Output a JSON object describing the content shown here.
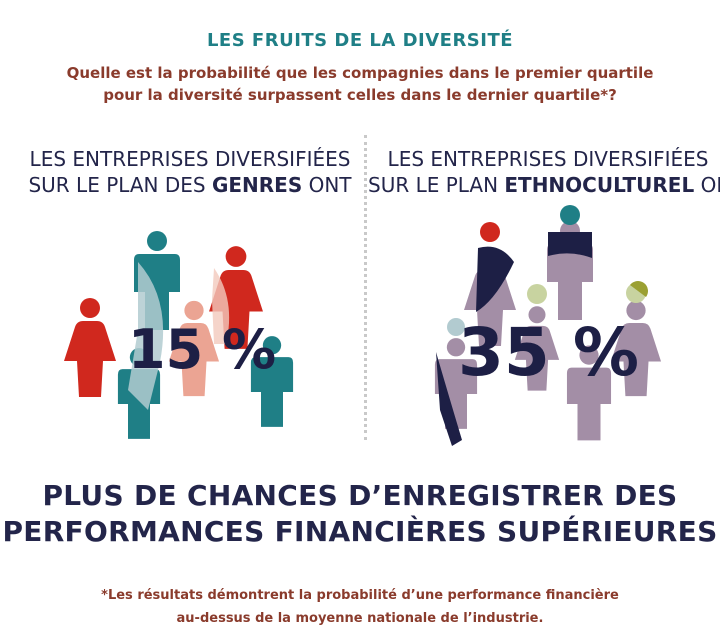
{
  "header": {
    "title": "LES FRUITS DE LA DIVERSITÉ",
    "question_line1": "Quelle est la probabilité que les compagnies dans le premier quartile",
    "question_line2": "pour la diversité surpassent celles dans le dernier quartile*?"
  },
  "left_panel": {
    "line1": "LES ENTREPRISES DIVERSIFIÉES",
    "line2_prefix": "SUR LE PLAN DES ",
    "line2_bold": "GENRES",
    "line2_suffix": " ONT",
    "percentage": "15 %"
  },
  "right_panel": {
    "line1": "LES ENTREPRISES DIVERSIFIÉES",
    "line2_prefix": "SUR LE PLAN ",
    "line2_bold": "ETHNOCULTUREL",
    "line2_suffix": " ONT",
    "percentage": "35 %"
  },
  "statement": {
    "line1": "PLUS DE CHANCES D’ENREGISTRER DES",
    "line2": "PERFORMANCES FINANCIÈRES SUPÉRIEURES"
  },
  "footnote": {
    "line1": "*Les résultats démontrent la probabilité d’une performance financière",
    "line2": "au-dessus de la moyenne nationale de l’industrie."
  },
  "colors": {
    "teal": "#1f7f86",
    "red": "#d0281e",
    "salmon": "#eba493",
    "navy": "#1d1f45",
    "mauve": "#a38ea6",
    "pale_green": "#c8d3a0",
    "olive": "#9ba032",
    "light_blue": "#b2cbd0",
    "brown": "#8a3b2c"
  }
}
